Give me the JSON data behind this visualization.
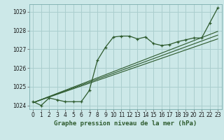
{
  "title": "Graphe pression niveau de la mer (hPa)",
  "bg_color": "#cce8e8",
  "grid_color": "#aacece",
  "line_color": "#2d5a2d",
  "xlim": [
    -0.5,
    23.5
  ],
  "ylim": [
    1023.8,
    1029.4
  ],
  "yticks": [
    1024,
    1025,
    1026,
    1027,
    1028,
    1029
  ],
  "xticks": [
    0,
    1,
    2,
    3,
    4,
    5,
    6,
    7,
    8,
    9,
    10,
    11,
    12,
    13,
    14,
    15,
    16,
    17,
    18,
    19,
    20,
    21,
    22,
    23
  ],
  "pressure_x": [
    0,
    1,
    2,
    3,
    4,
    5,
    6,
    7,
    8,
    9,
    10,
    11,
    12,
    13,
    14,
    15,
    16,
    17,
    18,
    19,
    20,
    21,
    22,
    23
  ],
  "pressure_y": [
    1024.2,
    1024.0,
    1024.4,
    1024.3,
    1024.2,
    1024.2,
    1024.2,
    1024.8,
    1026.4,
    1027.1,
    1027.65,
    1027.7,
    1027.7,
    1027.55,
    1027.65,
    1027.3,
    1027.2,
    1027.25,
    1027.4,
    1027.5,
    1027.6,
    1027.6,
    1028.4,
    1029.2
  ],
  "trend1_x": [
    0,
    23
  ],
  "trend1_y": [
    1024.15,
    1027.55
  ],
  "trend2_x": [
    0,
    23
  ],
  "trend2_y": [
    1024.15,
    1027.75
  ],
  "trend3_x": [
    0,
    23
  ],
  "trend3_y": [
    1024.15,
    1027.95
  ],
  "tick_fontsize": 5.5,
  "title_fontsize": 6.5
}
